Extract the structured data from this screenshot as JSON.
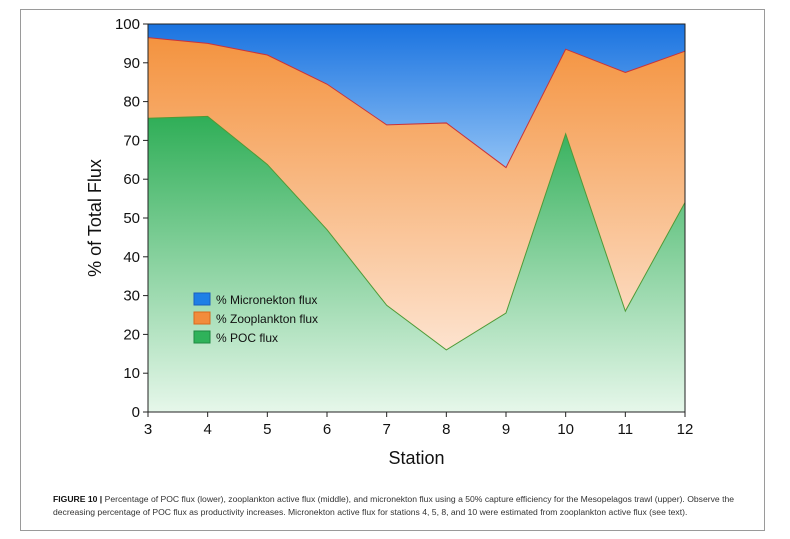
{
  "chart_data": {
    "type": "area",
    "stacked": true,
    "x": [
      3,
      4,
      5,
      6,
      7,
      8,
      9,
      10,
      11,
      12
    ],
    "xlabel": "Station",
    "ylabel": "% of Total Flux",
    "xlim": [
      3,
      12
    ],
    "ylim": [
      0,
      100
    ],
    "xticks": [
      "3",
      "4",
      "5",
      "6",
      "7",
      "8",
      "9",
      "10",
      "11",
      "12"
    ],
    "yticks": [
      "0",
      "10",
      "20",
      "30",
      "40",
      "50",
      "60",
      "70",
      "80",
      "90",
      "100"
    ],
    "legend_position": "lower-left",
    "grid": false,
    "series": [
      {
        "name": "% Micronekton flux",
        "values": [
          3.5,
          5.0,
          8.0,
          15.5,
          26.0,
          25.5,
          37.0,
          6.5,
          12.5,
          7.0
        ],
        "color": "#1f7fe6"
      },
      {
        "name": "% Zooplankton flux",
        "values": [
          20.8,
          18.8,
          28.2,
          37.5,
          46.5,
          58.5,
          37.5,
          21.8,
          61.5,
          39.0
        ],
        "color": "#f28c3c"
      },
      {
        "name": "% POC flux",
        "values": [
          75.7,
          76.2,
          63.8,
          47.0,
          27.5,
          16.0,
          25.5,
          71.7,
          26.0,
          54.0
        ],
        "color": "#2fb25a"
      }
    ]
  },
  "caption": {
    "label": "FIGURE 10 |",
    "text": "Percentage of POC flux (lower), zooplankton active flux (middle), and micronekton flux using a 50% capture efficiency for the Mesopelagos trawl (upper). Observe the decreasing percentage of POC flux as productivity increases. Micronekton active flux for stations 4, 5, 8, and 10 were estimated from zooplankton active flux (see text)."
  }
}
